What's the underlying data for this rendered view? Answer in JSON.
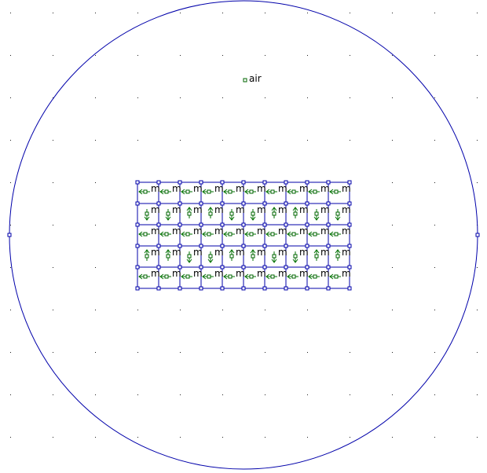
{
  "colors": {
    "boundary": "#0000aa",
    "grid_dot": "#202020",
    "block_label": "#006400",
    "magnet_arrow": "#007000",
    "label_text": "#000000",
    "background": "#ffffff"
  },
  "labels": {
    "air": "air",
    "magnet": "m"
  },
  "magnet_array": {
    "rows": 5,
    "cols": 10,
    "directions": [
      [
        "left",
        "left",
        "left",
        "left",
        "left",
        "left",
        "left",
        "left",
        "left",
        "left"
      ],
      [
        "down",
        "down",
        "up",
        "up",
        "down",
        "down",
        "up",
        "up",
        "down",
        "down"
      ],
      [
        "left",
        "left",
        "left",
        "left",
        "left",
        "left",
        "left",
        "left",
        "left",
        "left"
      ],
      [
        "up",
        "up",
        "down",
        "down",
        "up",
        "up",
        "down",
        "down",
        "up",
        "up"
      ],
      [
        "left",
        "left",
        "left",
        "left",
        "left",
        "left",
        "left",
        "left",
        "left",
        "left"
      ]
    ]
  }
}
